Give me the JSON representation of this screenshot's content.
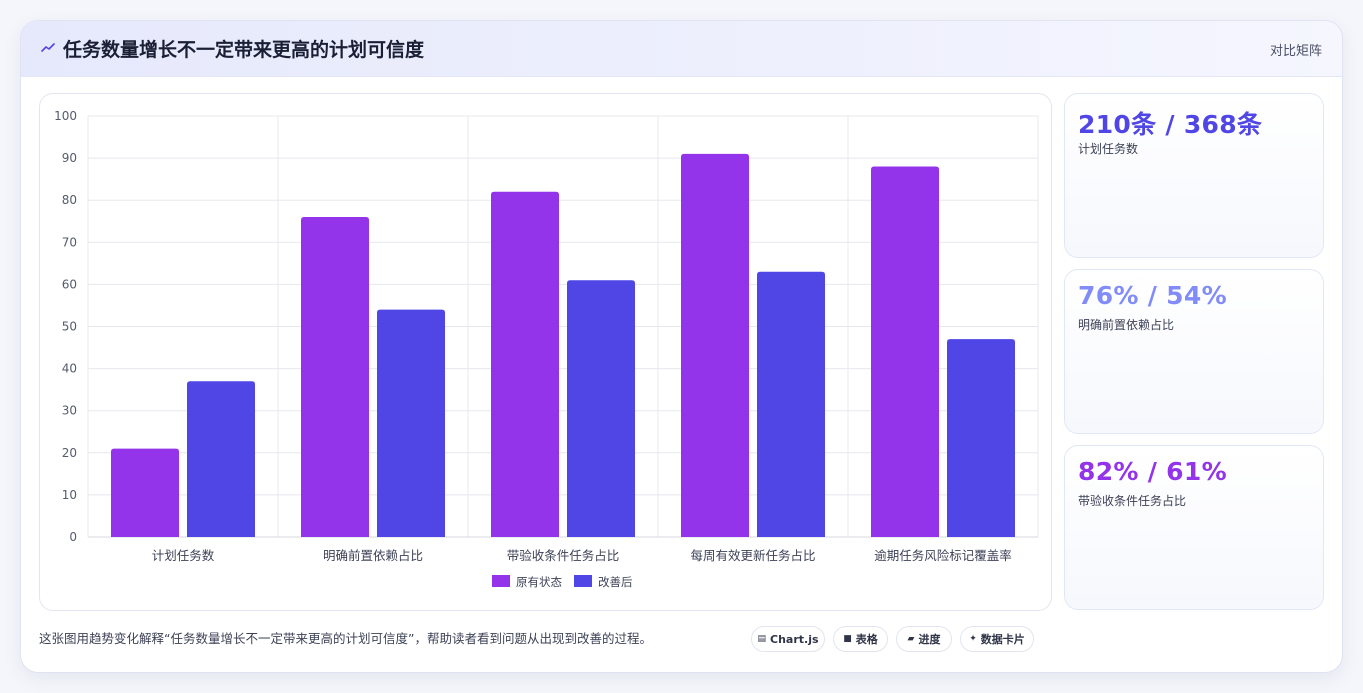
{
  "header": {
    "title": "任务数量增长不一定带来更高的计划可信度",
    "right_label": "对比矩阵",
    "icon": "trend-line-icon"
  },
  "chart_data": {
    "type": "bar",
    "categories": [
      "计划任务数",
      "明确前置依赖占比",
      "带验收条件任务占比",
      "每周有效更新任务占比",
      "逾期任务风险标记覆盖率"
    ],
    "series": [
      {
        "name": "原有状态",
        "values": [
          21,
          76,
          82,
          91,
          88
        ],
        "color": "#9333ea"
      },
      {
        "name": "改善后",
        "values": [
          37,
          54,
          61,
          63,
          47
        ],
        "color": "#4f46e5"
      }
    ],
    "ylim": [
      0,
      100
    ],
    "yticks": [
      0,
      10,
      20,
      30,
      40,
      50,
      60,
      70,
      80,
      90,
      100
    ],
    "grid": true,
    "legend_position": "bottom"
  },
  "stats": [
    {
      "value": "210条 / 368条",
      "label": "计划任务数",
      "color": "#4f46e5"
    },
    {
      "value": "76% / 54%",
      "label": "明确前置依赖占比",
      "color": "#818cf8"
    },
    {
      "value": "82% / 61%",
      "label": "带验收条件任务占比",
      "color": "#9333ea"
    }
  ],
  "caption": "这张图用趋势变化解释“任务数量增长不一定带来更高的计划可信度”，帮助读者看到问题从出现到改善的过程。",
  "chips": [
    {
      "icon": "▤",
      "label": "Chart.js"
    },
    {
      "icon": "■",
      "label": "表格"
    },
    {
      "icon": "▰",
      "label": "进度"
    },
    {
      "icon": "✦",
      "label": "数据卡片"
    }
  ]
}
